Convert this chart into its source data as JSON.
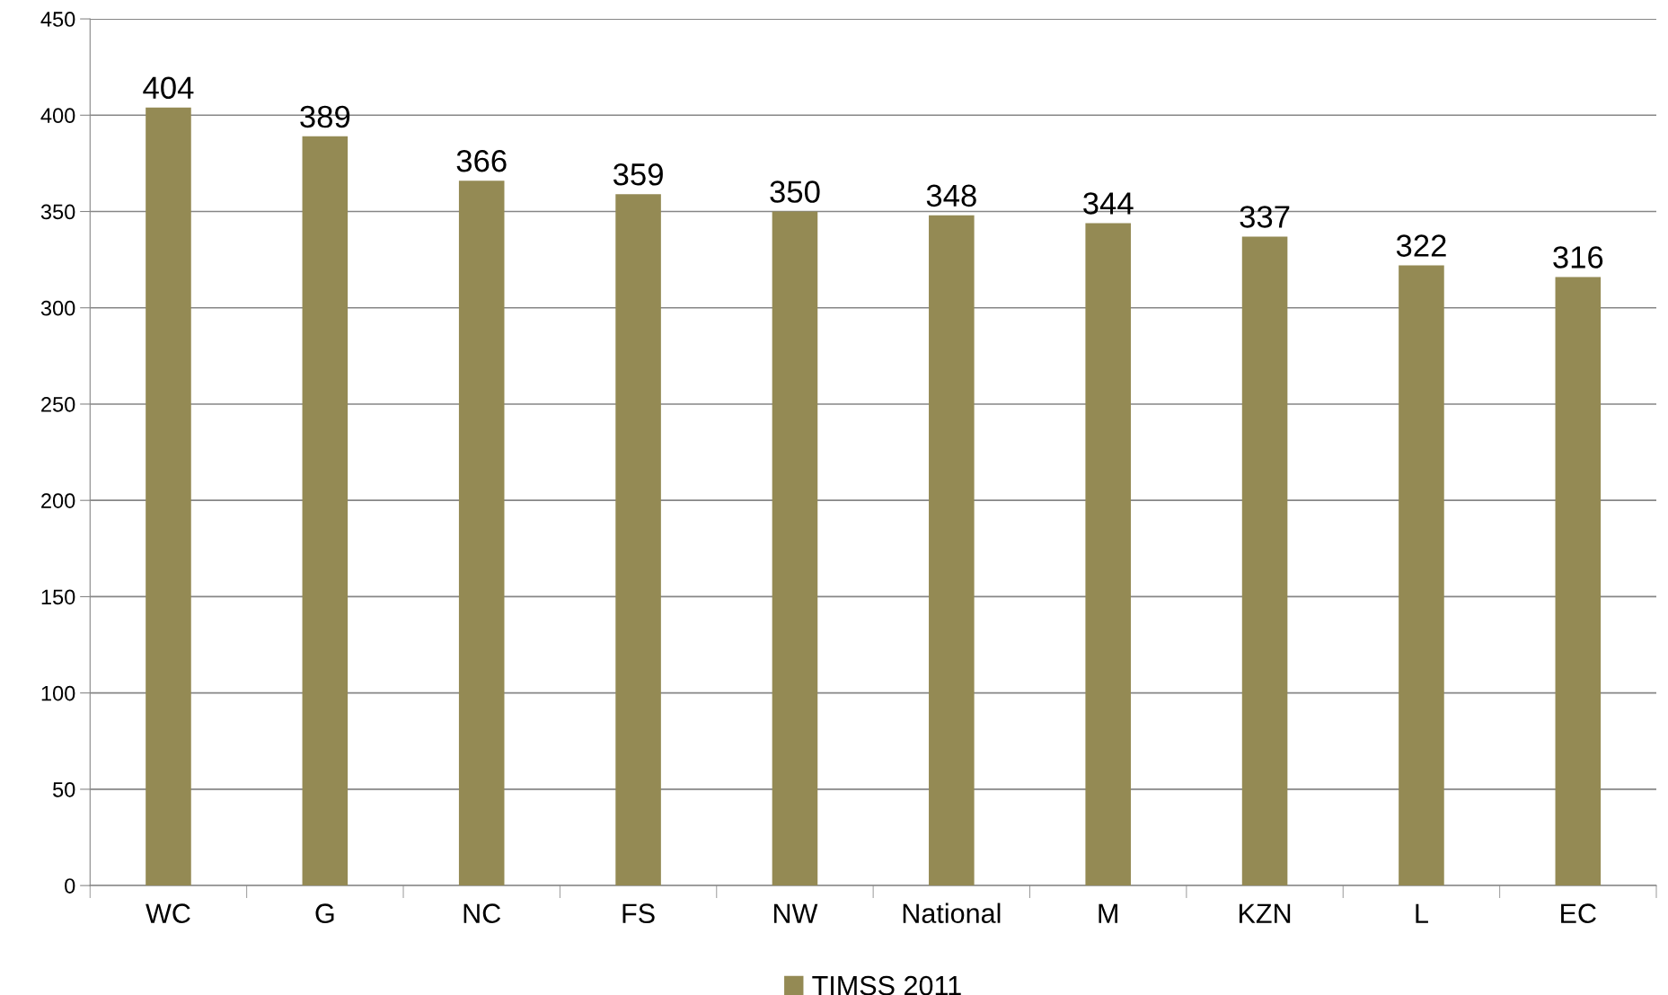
{
  "chart_data": {
    "type": "bar",
    "categories": [
      "WC",
      "G",
      "NC",
      "FS",
      "NW",
      "National",
      "M",
      "KZN",
      "L",
      "EC"
    ],
    "series": [
      {
        "name": "TIMSS 2011",
        "color": "#948a54",
        "values": [
          404,
          389,
          366,
          359,
          350,
          348,
          344,
          337,
          322,
          316
        ]
      }
    ],
    "ylim": [
      0,
      450
    ],
    "yticks": [
      0,
      50,
      100,
      150,
      200,
      250,
      300,
      350,
      400,
      450
    ],
    "grid": "y",
    "legend": "bottom",
    "data_labels": true
  }
}
